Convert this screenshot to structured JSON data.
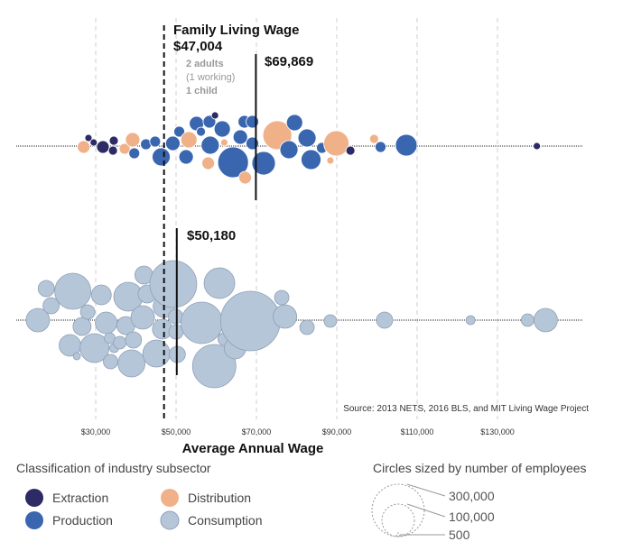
{
  "chart_data": {
    "type": "scatter",
    "subtype": "beeswarm",
    "xlabel": "Average Annual Wage",
    "xlim": [
      18000,
      145000
    ],
    "x_ticks": [
      "$30,000",
      "$50,000",
      "$70,000",
      "$90,000",
      "$110,000",
      "$130,000"
    ],
    "x_tick_values": [
      30000,
      50000,
      70000,
      90000,
      110000,
      130000
    ],
    "grid": true,
    "source": "Source: 2013 NETS, 2016 BLS, and MIT Living Wage Project",
    "family_wage": {
      "title": "Family Living Wage",
      "value": 47004,
      "value_label": "$47,004",
      "note": [
        "2 adults",
        "(1 working)",
        "1 child"
      ]
    },
    "top_row": {
      "average": 69869,
      "average_label": "$69,869",
      "points": [
        {
          "x": 27000,
          "dy": 1,
          "r": 7,
          "cat": "Distribution"
        },
        {
          "x": 28200,
          "dy": -9,
          "r": 4,
          "cat": "Extraction"
        },
        {
          "x": 29500,
          "dy": -4,
          "r": 4,
          "cat": "Extraction"
        },
        {
          "x": 31800,
          "dy": 1,
          "r": 7,
          "cat": "Extraction"
        },
        {
          "x": 34500,
          "dy": -6,
          "r": 5,
          "cat": "Extraction"
        },
        {
          "x": 34300,
          "dy": 5,
          "r": 5,
          "cat": "Extraction"
        },
        {
          "x": 37200,
          "dy": 3,
          "r": 6,
          "cat": "Distribution"
        },
        {
          "x": 39200,
          "dy": -7,
          "r": 8,
          "cat": "Distribution"
        },
        {
          "x": 39600,
          "dy": 8,
          "r": 6,
          "cat": "Production"
        },
        {
          "x": 42500,
          "dy": -2,
          "r": 6,
          "cat": "Production"
        },
        {
          "x": 44800,
          "dy": -5,
          "r": 6,
          "cat": "Production"
        },
        {
          "x": 46300,
          "dy": 12,
          "r": 10,
          "cat": "Production"
        },
        {
          "x": 49200,
          "dy": -3,
          "r": 8,
          "cat": "Production"
        },
        {
          "x": 50800,
          "dy": -16,
          "r": 6,
          "cat": "Production"
        },
        {
          "x": 53200,
          "dy": -7,
          "r": 9,
          "cat": "Distribution"
        },
        {
          "x": 52500,
          "dy": 12,
          "r": 8,
          "cat": "Production"
        },
        {
          "x": 55100,
          "dy": -25,
          "r": 8,
          "cat": "Production"
        },
        {
          "x": 56200,
          "dy": -16,
          "r": 5,
          "cat": "Production"
        },
        {
          "x": 58000,
          "dy": 19,
          "r": 7,
          "cat": "Distribution"
        },
        {
          "x": 58500,
          "dy": -1,
          "r": 10,
          "cat": "Production"
        },
        {
          "x": 58300,
          "dy": -27,
          "r": 7,
          "cat": "Production"
        },
        {
          "x": 59700,
          "dy": -34,
          "r": 4,
          "cat": "Extraction"
        },
        {
          "x": 61500,
          "dy": -19,
          "r": 9,
          "cat": "Production"
        },
        {
          "x": 62000,
          "dy": -4,
          "r": 4,
          "cat": "Distribution"
        },
        {
          "x": 64200,
          "dy": 18,
          "r": 17,
          "cat": "Production"
        },
        {
          "x": 66000,
          "dy": -10,
          "r": 8,
          "cat": "Production"
        },
        {
          "x": 67000,
          "dy": -27,
          "r": 7,
          "cat": "Production"
        },
        {
          "x": 69000,
          "dy": -3,
          "r": 7,
          "cat": "Production"
        },
        {
          "x": 69000,
          "dy": -27,
          "r": 7,
          "cat": "Production"
        },
        {
          "x": 67200,
          "dy": 35,
          "r": 7,
          "cat": "Distribution"
        },
        {
          "x": 71800,
          "dy": 19,
          "r": 13,
          "cat": "Production"
        },
        {
          "x": 75200,
          "dy": -12,
          "r": 16,
          "cat": "Distribution"
        },
        {
          "x": 78100,
          "dy": 4,
          "r": 10,
          "cat": "Production"
        },
        {
          "x": 79500,
          "dy": -26,
          "r": 9,
          "cat": "Production"
        },
        {
          "x": 82600,
          "dy": -9,
          "r": 10,
          "cat": "Production"
        },
        {
          "x": 83600,
          "dy": 15,
          "r": 11,
          "cat": "Production"
        },
        {
          "x": 86300,
          "dy": 2,
          "r": 6,
          "cat": "Production"
        },
        {
          "x": 88400,
          "dy": 16,
          "r": 4,
          "cat": "Distribution"
        },
        {
          "x": 89900,
          "dy": -3,
          "r": 14,
          "cat": "Distribution"
        },
        {
          "x": 93400,
          "dy": 5,
          "r": 5,
          "cat": "Extraction"
        },
        {
          "x": 99300,
          "dy": -8,
          "r": 5,
          "cat": "Distribution"
        },
        {
          "x": 100900,
          "dy": 1,
          "r": 6,
          "cat": "Production"
        },
        {
          "x": 107300,
          "dy": -1,
          "r": 12,
          "cat": "Production"
        },
        {
          "x": 139800,
          "dy": 0,
          "r": 4,
          "cat": "Extraction"
        }
      ]
    },
    "bottom_row": {
      "average": 50180,
      "average_label": "$50,180",
      "points": [
        {
          "x": 15600,
          "dy": 0,
          "r": 13,
          "cat": "Consumption"
        },
        {
          "x": 17700,
          "dy": -35,
          "r": 9,
          "cat": "Consumption"
        },
        {
          "x": 18900,
          "dy": -16,
          "r": 9,
          "cat": "Consumption"
        },
        {
          "x": 24300,
          "dy": -32,
          "r": 20,
          "cat": "Consumption"
        },
        {
          "x": 23600,
          "dy": 28,
          "r": 12,
          "cat": "Consumption"
        },
        {
          "x": 25300,
          "dy": 40,
          "r": 4,
          "cat": "Consumption"
        },
        {
          "x": 26600,
          "dy": 7,
          "r": 10,
          "cat": "Consumption"
        },
        {
          "x": 28000,
          "dy": -9,
          "r": 8,
          "cat": "Consumption"
        },
        {
          "x": 29700,
          "dy": 31,
          "r": 16,
          "cat": "Consumption"
        },
        {
          "x": 31400,
          "dy": -28,
          "r": 11,
          "cat": "Consumption"
        },
        {
          "x": 32600,
          "dy": 3,
          "r": 12,
          "cat": "Consumption"
        },
        {
          "x": 33500,
          "dy": 20,
          "r": 6,
          "cat": "Consumption"
        },
        {
          "x": 33700,
          "dy": 46,
          "r": 8,
          "cat": "Consumption"
        },
        {
          "x": 34600,
          "dy": 31,
          "r": 5,
          "cat": "Consumption"
        },
        {
          "x": 36000,
          "dy": 25,
          "r": 7,
          "cat": "Consumption"
        },
        {
          "x": 38100,
          "dy": -26,
          "r": 16,
          "cat": "Consumption"
        },
        {
          "x": 37500,
          "dy": 6,
          "r": 10,
          "cat": "Consumption"
        },
        {
          "x": 38900,
          "dy": 48,
          "r": 15,
          "cat": "Consumption"
        },
        {
          "x": 39400,
          "dy": 22,
          "r": 9,
          "cat": "Consumption"
        },
        {
          "x": 41700,
          "dy": -3,
          "r": 13,
          "cat": "Consumption"
        },
        {
          "x": 42000,
          "dy": -50,
          "r": 10,
          "cat": "Consumption"
        },
        {
          "x": 42800,
          "dy": -29,
          "r": 10,
          "cat": "Consumption"
        },
        {
          "x": 45100,
          "dy": 37,
          "r": 15,
          "cat": "Consumption"
        },
        {
          "x": 46600,
          "dy": 10,
          "r": 11,
          "cat": "Consumption"
        },
        {
          "x": 47000,
          "dy": -15,
          "r": 12,
          "cat": "Consumption"
        },
        {
          "x": 49300,
          "dy": -40,
          "r": 26,
          "cat": "Consumption"
        },
        {
          "x": 49900,
          "dy": -4,
          "r": 8,
          "cat": "Consumption"
        },
        {
          "x": 50000,
          "dy": 13,
          "r": 8,
          "cat": "Consumption"
        },
        {
          "x": 50300,
          "dy": 38,
          "r": 9,
          "cat": "Consumption"
        },
        {
          "x": 56400,
          "dy": 3,
          "r": 23,
          "cat": "Consumption"
        },
        {
          "x": 59500,
          "dy": 51,
          "r": 24,
          "cat": "Consumption"
        },
        {
          "x": 60800,
          "dy": -41,
          "r": 17,
          "cat": "Consumption"
        },
        {
          "x": 62000,
          "dy": 21,
          "r": 7,
          "cat": "Consumption"
        },
        {
          "x": 64700,
          "dy": 31,
          "r": 12,
          "cat": "Consumption"
        },
        {
          "x": 68500,
          "dy": 1,
          "r": 33,
          "cat": "Consumption"
        },
        {
          "x": 76300,
          "dy": -25,
          "r": 8,
          "cat": "Consumption"
        },
        {
          "x": 77100,
          "dy": -4,
          "r": 13,
          "cat": "Consumption"
        },
        {
          "x": 82600,
          "dy": 8,
          "r": 8,
          "cat": "Consumption"
        },
        {
          "x": 88400,
          "dy": 1,
          "r": 7,
          "cat": "Consumption"
        },
        {
          "x": 101900,
          "dy": 0,
          "r": 9,
          "cat": "Consumption"
        },
        {
          "x": 123300,
          "dy": 0,
          "r": 5,
          "cat": "Consumption"
        },
        {
          "x": 137500,
          "dy": 0,
          "r": 7,
          "cat": "Consumption"
        },
        {
          "x": 142000,
          "dy": 0,
          "r": 13,
          "cat": "Consumption"
        }
      ]
    },
    "legend": {
      "title": "Classification of industry subsector",
      "items": [
        {
          "label": "Extraction",
          "color": "#2d2a66"
        },
        {
          "label": "Distribution",
          "color": "#f0b189"
        },
        {
          "label": "Production",
          "color": "#3a66b0"
        },
        {
          "label": "Consumption",
          "color": "#b6c6d9"
        }
      ]
    },
    "size_legend": {
      "title": "Circles sized by number of employees",
      "items": [
        {
          "value": 300000,
          "label": "300,000"
        },
        {
          "value": 100000,
          "label": "100,000"
        },
        {
          "value": 500,
          "label": "500"
        }
      ]
    }
  }
}
